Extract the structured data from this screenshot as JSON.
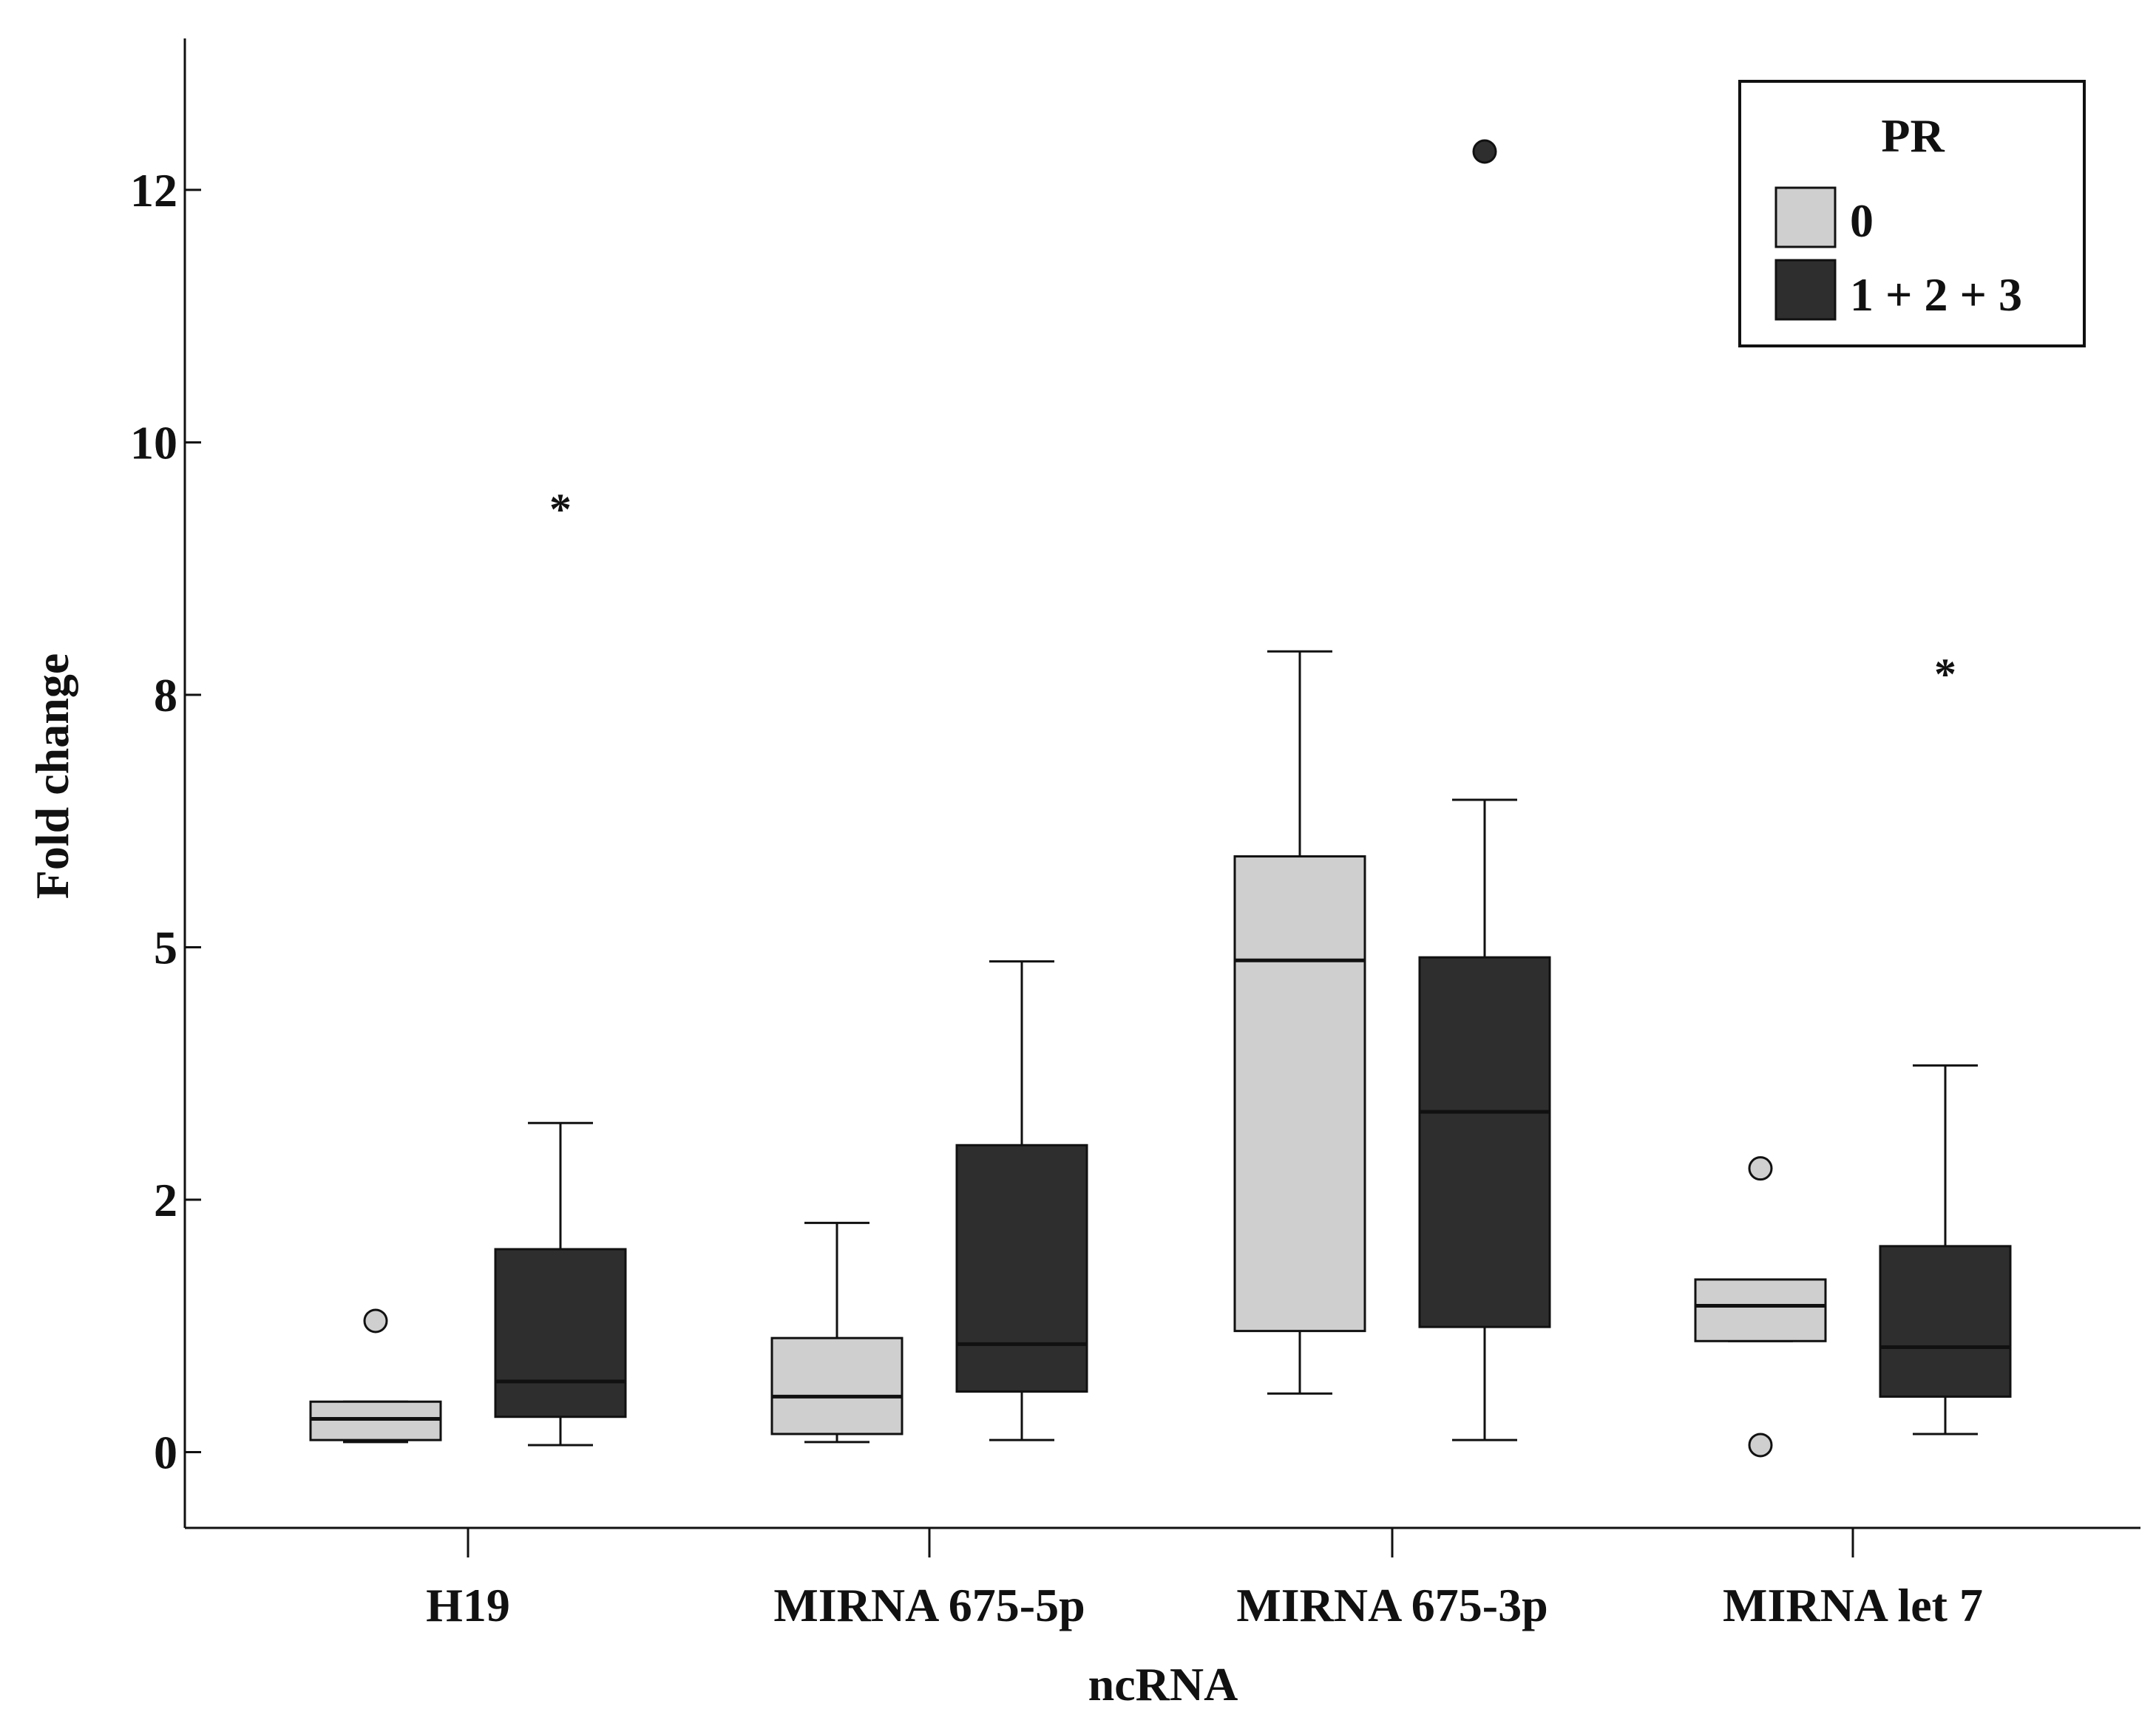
{
  "chart_data": {
    "type": "box",
    "title": "",
    "xlabel": "ncRNA",
    "ylabel": "Fold change",
    "ylim": [
      -0.75,
      14.0
    ],
    "yticks": [
      {
        "value": 0,
        "label": "0"
      },
      {
        "value": 2.5,
        "label": "2"
      },
      {
        "value": 5,
        "label": "5"
      },
      {
        "value": 7.5,
        "label": "8"
      },
      {
        "value": 10,
        "label": "10"
      },
      {
        "value": 12.5,
        "label": "12"
      }
    ],
    "categories": [
      "H19",
      "MIRNA 675-5p",
      "MIRNA 675-3p",
      "MIRNA let 7"
    ],
    "legend": {
      "title": "PR",
      "position": "top-right",
      "entries": [
        {
          "label": "0",
          "color": "#cfcfcf"
        },
        {
          "label": "1 + 2 + 3",
          "color": "#2e2e2e"
        }
      ]
    },
    "series": [
      {
        "name": "0",
        "color": "#cfcfcf",
        "boxes": [
          {
            "category": "H19",
            "whisker_low": 0.1,
            "q1": 0.12,
            "median": 0.33,
            "q3": 0.5,
            "whisker_high": 0.5,
            "outliers": [
              {
                "value": 1.3,
                "marker": "circle"
              }
            ]
          },
          {
            "category": "MIRNA 675-5p",
            "whisker_low": 0.1,
            "q1": 0.18,
            "median": 0.55,
            "q3": 1.13,
            "whisker_high": 2.27,
            "outliers": []
          },
          {
            "category": "MIRNA 675-3p",
            "whisker_low": 0.58,
            "q1": 1.2,
            "median": 4.87,
            "q3": 5.9,
            "whisker_high": 7.93,
            "outliers": []
          },
          {
            "category": "MIRNA let 7",
            "whisker_low": 1.1,
            "q1": 1.1,
            "median": 1.45,
            "q3": 1.71,
            "whisker_high": 1.71,
            "outliers": [
              {
                "value": 2.81,
                "marker": "circle"
              },
              {
                "value": 0.07,
                "marker": "circle"
              }
            ]
          }
        ]
      },
      {
        "name": "1 + 2 + 3",
        "color": "#2e2e2e",
        "boxes": [
          {
            "category": "H19",
            "whisker_low": 0.07,
            "q1": 0.35,
            "median": 0.7,
            "q3": 2.01,
            "whisker_high": 3.26,
            "outliers": [
              {
                "value": 9.38,
                "marker": "star"
              }
            ]
          },
          {
            "category": "MIRNA 675-5p",
            "whisker_low": 0.12,
            "q1": 0.6,
            "median": 1.07,
            "q3": 3.04,
            "whisker_high": 4.86,
            "outliers": []
          },
          {
            "category": "MIRNA 675-3p",
            "whisker_low": 0.12,
            "q1": 1.24,
            "median": 3.37,
            "q3": 4.9,
            "whisker_high": 6.46,
            "outliers": [
              {
                "value": 12.88,
                "marker": "circle"
              }
            ]
          },
          {
            "category": "MIRNA let 7",
            "whisker_low": 0.18,
            "q1": 0.55,
            "median": 1.04,
            "q3": 2.04,
            "whisker_high": 3.83,
            "outliers": [
              {
                "value": 7.75,
                "marker": "star"
              }
            ]
          }
        ]
      }
    ]
  }
}
